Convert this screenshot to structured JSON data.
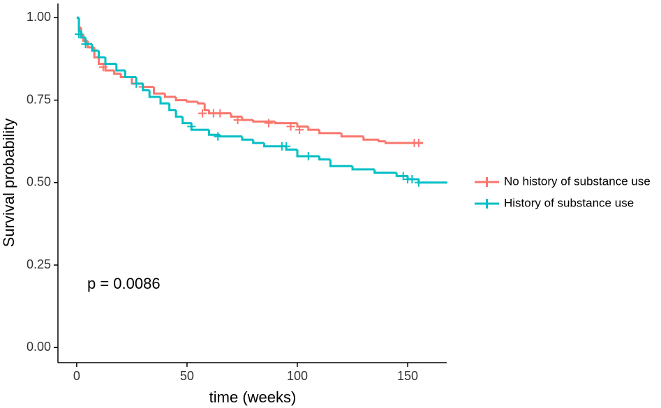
{
  "chart_data": {
    "type": "step",
    "x_label": "time (weeks)",
    "y_label": "Survival probability",
    "annotation": "p = 0.0086",
    "xlim": [
      -8.5,
      167.7
    ],
    "ylim": [
      -0.046,
      1.043
    ],
    "xticks": [
      0,
      50,
      100,
      150
    ],
    "yticks": [
      {
        "value": 0,
        "label": "0.00"
      },
      {
        "value": 0.25,
        "label": "0.25"
      },
      {
        "value": 0.5,
        "label": "0.50"
      },
      {
        "value": 0.75,
        "label": "0.75"
      },
      {
        "value": 1,
        "label": "1.00"
      }
    ],
    "legend": "right",
    "series": [
      {
        "name": "No history of substance use",
        "color": "#F8766D",
        "x": [
          0,
          1,
          2,
          3,
          5,
          8,
          10,
          13,
          17,
          20,
          25,
          30,
          35,
          40,
          45,
          50,
          55,
          58,
          60,
          70,
          75,
          80,
          90,
          100,
          105,
          110,
          120,
          130,
          137,
          140,
          157
        ],
        "values": [
          1.0,
          0.97,
          0.95,
          0.93,
          0.91,
          0.88,
          0.86,
          0.84,
          0.83,
          0.82,
          0.8,
          0.79,
          0.77,
          0.76,
          0.75,
          0.745,
          0.74,
          0.72,
          0.71,
          0.7,
          0.69,
          0.685,
          0.68,
          0.67,
          0.66,
          0.65,
          0.64,
          0.63,
          0.625,
          0.62,
          0.62
        ],
        "censor_x": [
          12,
          30,
          57,
          62,
          65,
          73,
          87,
          97,
          101,
          153,
          155
        ],
        "censor_values": [
          0.85,
          0.79,
          0.71,
          0.71,
          0.71,
          0.69,
          0.68,
          0.67,
          0.66,
          0.62,
          0.62
        ]
      },
      {
        "name": "History of substance use",
        "color": "#00BFC4",
        "x": [
          0,
          1,
          2,
          4,
          7,
          10,
          13,
          18,
          22,
          27,
          30,
          33,
          38,
          42,
          45,
          48,
          52,
          60,
          65,
          75,
          80,
          85,
          95,
          100,
          110,
          115,
          125,
          135,
          145,
          150,
          155,
          168
        ],
        "values": [
          1.0,
          0.96,
          0.94,
          0.92,
          0.9,
          0.88,
          0.86,
          0.84,
          0.82,
          0.8,
          0.78,
          0.76,
          0.74,
          0.72,
          0.7,
          0.68,
          0.66,
          0.645,
          0.64,
          0.63,
          0.62,
          0.61,
          0.6,
          0.58,
          0.57,
          0.55,
          0.54,
          0.53,
          0.52,
          0.51,
          0.5,
          0.5
        ],
        "censor_x": [
          1,
          4,
          27,
          52,
          64,
          93,
          95,
          105,
          148,
          150,
          152,
          155
        ],
        "censor_values": [
          0.95,
          0.92,
          0.8,
          0.67,
          0.64,
          0.61,
          0.61,
          0.58,
          0.52,
          0.51,
          0.51,
          0.5
        ]
      }
    ]
  }
}
